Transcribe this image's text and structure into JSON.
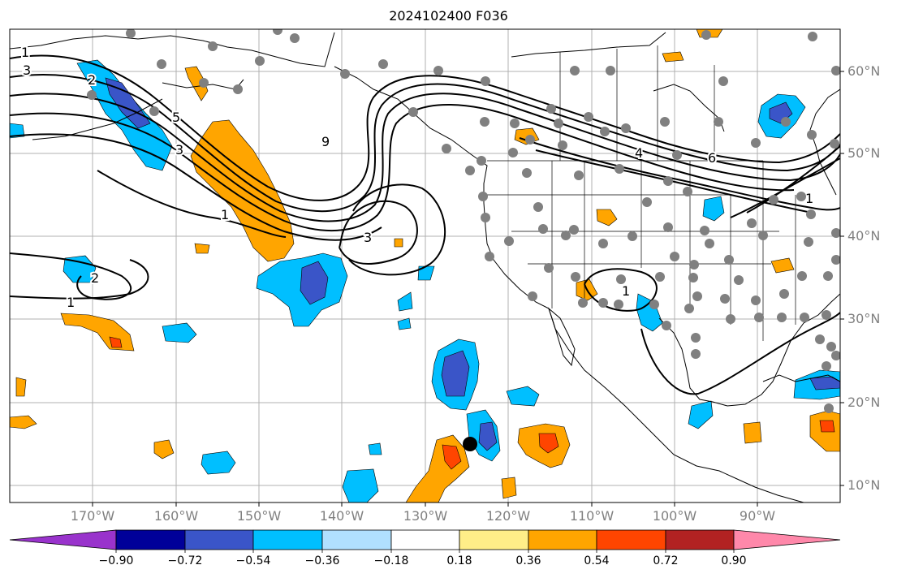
{
  "title": "2024102400 F036",
  "lon_labels": [
    "170°W",
    "160°W",
    "150°W",
    "140°W",
    "130°W",
    "120°W",
    "110°W",
    "100°W",
    "90°W"
  ],
  "lat_labels": [
    "60°N",
    "50°N",
    "40°N",
    "30°N",
    "20°N",
    "10°N"
  ],
  "contour_labels": [
    "1",
    "3",
    "2",
    "5",
    "3",
    "9",
    "3",
    "1",
    "2",
    "1",
    "1",
    "4",
    "6",
    "1"
  ],
  "colorbar": {
    "colors": [
      "#9933cc",
      "#000099",
      "#3a55c8",
      "#00bfff",
      "#b0e0ff",
      "#ffffff",
      "#ffee88",
      "#ffa500",
      "#ff4500",
      "#b22222",
      "#ff88aa"
    ],
    "ticks": [
      "−0.90",
      "−0.72",
      "−0.54",
      "−0.36",
      "−0.18",
      "0.18",
      "0.36",
      "0.54",
      "0.72",
      "0.90"
    ]
  },
  "colors": {
    "orange": "#ffa500",
    "red": "#ff4500",
    "lightblue": "#00bfff",
    "darkblue": "#3a55c8",
    "station": "#808080",
    "grid": "#b0b0b0"
  }
}
